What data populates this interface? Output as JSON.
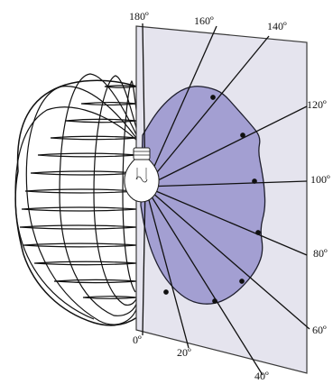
{
  "angle_labels": [
    "180º",
    "160º",
    "140º",
    "120º",
    "100º",
    "80º",
    "60º",
    "40º",
    "20º",
    "0º"
  ],
  "colors": {
    "plane_fill": "#e5e4ee",
    "plane_stroke": "#3a3a3a",
    "distribution_fill": "#a39fd2",
    "distribution_stroke": "#1f1f2e",
    "wireframe": "#111111",
    "rays": "#111111",
    "bulb_fill": "#ffffff"
  }
}
